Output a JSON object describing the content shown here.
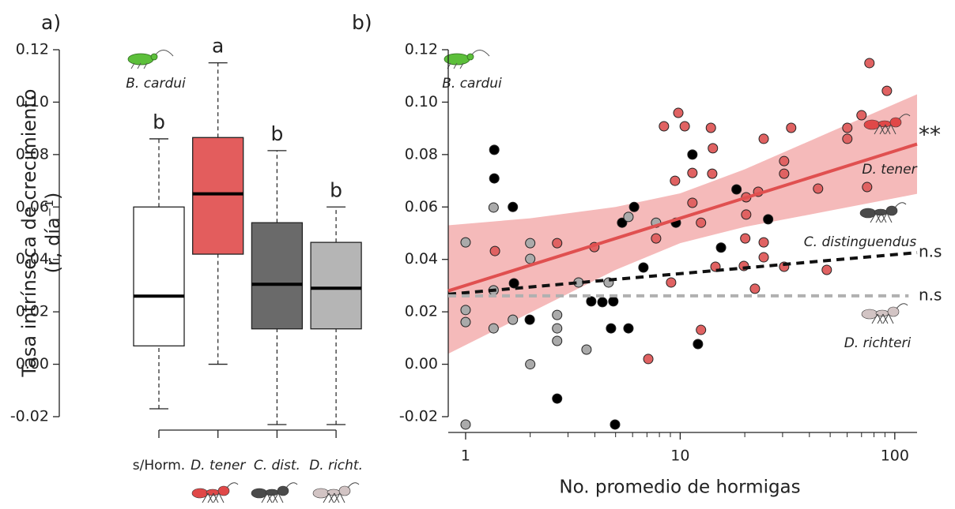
{
  "chart_data": [
    {
      "type": "box",
      "panel_label": "a)",
      "y_label": [
        "Tasa intrínseca de crecimiento",
        "(r, día⁻¹)"
      ],
      "organism_label": "B. cardui",
      "categories": [
        "s/Horm.",
        "D. tener",
        "C. dist.",
        "D. richt."
      ],
      "low": [
        -0.017,
        0.0,
        -0.023,
        -0.023
      ],
      "q1": [
        0.007,
        0.042,
        0.0135,
        0.0135
      ],
      "median": [
        0.026,
        0.065,
        0.0305,
        0.029
      ],
      "q3": [
        0.06,
        0.0865,
        0.054,
        0.0465
      ],
      "high": [
        0.086,
        0.115,
        0.0815,
        0.06
      ],
      "colors": [
        "#ffffff",
        "#e35d5d",
        "#6a6a6a",
        "#b5b5b5"
      ],
      "letters": [
        "b",
        "a",
        "b",
        "b"
      ],
      "ylim": [
        -0.02,
        0.12
      ],
      "yticks": [
        -0.02,
        {
          "value": 0.0,
          "label": "0.00"
        },
        0.02,
        0.04,
        0.06,
        0.08,
        {
          "value": 0.1,
          "label": "0.10"
        },
        0.12
      ]
    },
    {
      "type": "scatter",
      "panel_label": "b)",
      "x_label": "No. promedio de hormigas",
      "organism_label": "B. cardui",
      "xlog": true,
      "xlim": [
        0.83,
        127
      ],
      "xticks": [
        1,
        10,
        100
      ],
      "xminor_ticks": [
        2,
        3,
        4,
        5,
        6,
        7,
        8,
        9,
        20,
        30,
        40,
        50,
        60,
        70,
        80,
        90
      ],
      "ylim": [
        -0.02,
        0.12
      ],
      "yticks": [
        -0.02,
        {
          "value": 0.0,
          "label": "0.00"
        },
        0.02,
        0.04,
        0.06,
        0.08,
        {
          "value": 0.1,
          "label": "0.10"
        },
        0.12
      ],
      "band": {
        "color": "#f2a3a3",
        "x": [
          0.83,
          2,
          5,
          10,
          20,
          50,
          127
        ],
        "upper": [
          0.053,
          0.0557,
          0.06,
          0.0652,
          0.0744,
          0.0886,
          0.103
        ],
        "lower": [
          0.004,
          0.0197,
          0.036,
          0.0462,
          0.0524,
          0.0586,
          0.065
        ]
      },
      "fits": [
        {
          "name": "D. tener",
          "color": "#e05050",
          "dashed": false,
          "x": [
            0.83,
            127
          ],
          "values": [
            0.028,
            0.084
          ],
          "label": "**"
        },
        {
          "name": "C. distinguendus",
          "color": "#111111",
          "dashed": true,
          "x": [
            0.83,
            127
          ],
          "values": [
            0.0267,
            0.0426
          ],
          "label": "n.s"
        },
        {
          "name": "D. richteri",
          "color": "#b0b0b0",
          "dashed": true,
          "x": [
            0.83,
            116
          ],
          "values": [
            0.0261,
            0.0261
          ],
          "label": "n.s"
        }
      ],
      "series": [
        {
          "name": "D. tener",
          "color": "#e06262",
          "x": [
            1.37,
            2.67,
            3.98,
            7.72,
            8.4,
            9.8,
            10.5,
            9.46,
            9.07,
            7.1,
            11.4,
            11.4,
            12.5,
            12.5,
            13.9,
            14.2,
            14.1,
            14.6,
            19.8,
            20.1,
            20.3,
            20.3,
            23.1,
            22.3,
            24.5,
            24.5,
            24.5,
            30.5,
            30.5,
            30.5,
            32.9,
            43.9,
            48.2,
            60.1,
            60.1,
            70.0,
            74.3,
            76.2,
            91.9
          ],
          "values": [
            0.0432,
            0.0462,
            0.0447,
            0.048,
            0.0908,
            0.0959,
            0.0908,
            0.07,
            0.0312,
            0.002,
            0.073,
            0.0616,
            0.054,
            0.0131,
            0.0902,
            0.0824,
            0.0727,
            0.0372,
            0.0375,
            0.048,
            0.0571,
            0.0637,
            0.0658,
            0.0288,
            0.086,
            0.0465,
            0.0408,
            0.0775,
            0.0727,
            0.0372,
            0.0902,
            0.067,
            0.036,
            0.0902,
            0.086,
            0.095,
            0.0676,
            0.1149,
            0.1043
          ]
        },
        {
          "name": "C. distinguendus",
          "color": "#000000",
          "x": [
            1.36,
            1.36,
            1.66,
            1.68,
            1.99,
            2.67,
            3.85,
            4.34,
            4.88,
            4.76,
            4.97,
            5.36,
            5.74,
            6.1,
            6.74,
            9.55,
            11.4,
            12.1,
            15.5,
            18.3,
            25.7
          ],
          "values": [
            0.0818,
            0.0709,
            0.06,
            0.0309,
            0.017,
            -0.0131,
            0.024,
            0.0237,
            0.024,
            0.0137,
            -0.023,
            0.054,
            0.0137,
            0.06,
            0.0369,
            0.054,
            0.08,
            0.0077,
            0.0445,
            0.0667,
            0.0553
          ]
        },
        {
          "name": "D. richteri",
          "color": "#aaaaaa",
          "x": [
            1.0,
            1.0,
            1.0,
            1.0,
            1.35,
            1.35,
            1.35,
            1.66,
            2.0,
            2.0,
            2.0,
            2.67,
            2.67,
            2.67,
            3.36,
            3.66,
            4.64,
            5.74,
            7.72
          ],
          "values": [
            0.0465,
            0.0207,
            0.0161,
            -0.023,
            0.0598,
            0.0282,
            0.0137,
            0.017,
            0.0462,
            0.0402,
            0.0,
            0.0188,
            0.0137,
            0.0089,
            0.0312,
            0.0056,
            0.0312,
            0.0562,
            0.054
          ]
        }
      ]
    }
  ]
}
